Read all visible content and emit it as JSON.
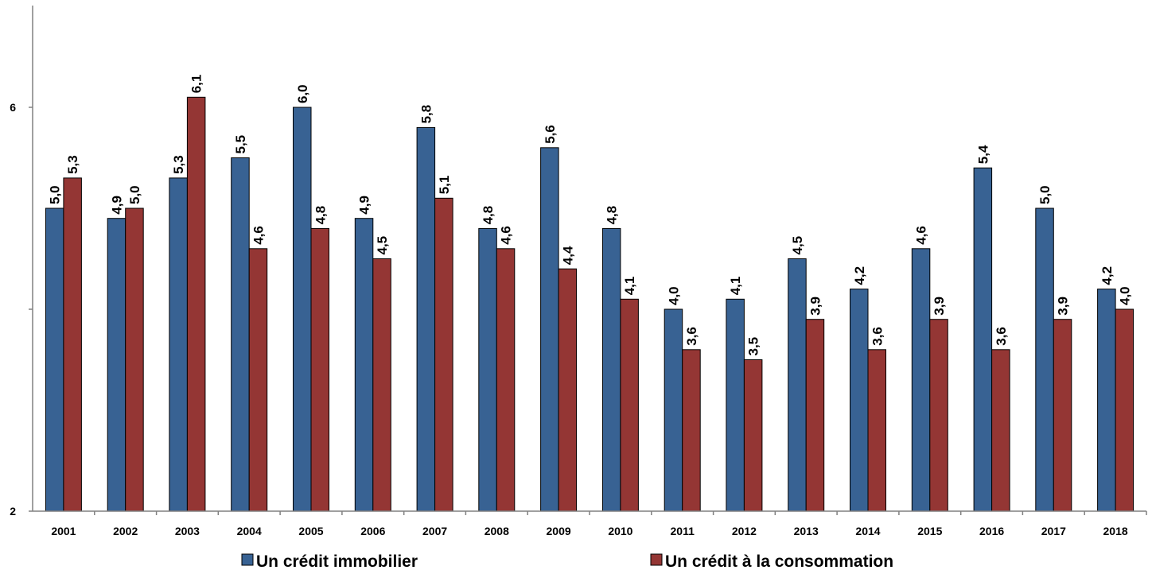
{
  "chart_data": {
    "type": "bar",
    "categories": [
      "2001",
      "2002",
      "2003",
      "2004",
      "2005",
      "2006",
      "2007",
      "2008",
      "2009",
      "2010",
      "2011",
      "2012",
      "2013",
      "2014",
      "2015",
      "2016",
      "2017",
      "2018"
    ],
    "series": [
      {
        "name": "Un crédit immobilier",
        "color": "#386293",
        "values": [
          5.0,
          4.9,
          5.3,
          5.5,
          6.0,
          4.9,
          5.8,
          4.8,
          5.6,
          4.8,
          4.0,
          4.1,
          4.5,
          4.2,
          4.6,
          5.4,
          5.0,
          4.2
        ],
        "labels": [
          "5,0",
          "4,9",
          "5,3",
          "5,5",
          "6,0",
          "4,9",
          "5,8",
          "4,8",
          "5,6",
          "4,8",
          "4,0",
          "4,1",
          "4,5",
          "4,2",
          "4,6",
          "5,4",
          "5,0",
          "4,2"
        ]
      },
      {
        "name": "Un crédit à la consommation",
        "color": "#943634",
        "values": [
          5.3,
          5.0,
          6.1,
          4.6,
          4.8,
          4.5,
          5.1,
          4.6,
          4.4,
          4.1,
          3.6,
          3.5,
          3.9,
          3.6,
          3.9,
          3.6,
          3.9,
          4.0
        ],
        "labels": [
          "5,3",
          "5,0",
          "6,1",
          "4,6",
          "4,8",
          "4,5",
          "5,1",
          "4,6",
          "4,4",
          "4,1",
          "3,6",
          "3,5",
          "3,9",
          "3,6",
          "3,9",
          "3,6",
          "3,9",
          "4,0"
        ]
      }
    ],
    "y_ticks": [
      "6",
      "2"
    ],
    "ylim": [
      2,
      7
    ],
    "legend_position": "bottom",
    "grid": false
  }
}
